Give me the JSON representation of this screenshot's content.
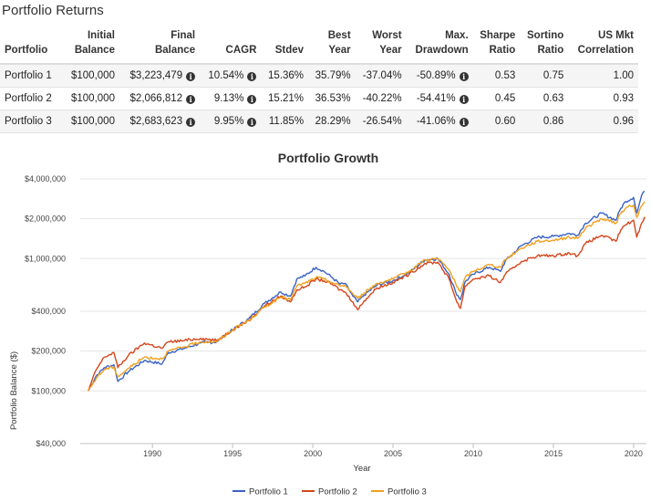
{
  "page": {
    "title": "Portfolio Returns"
  },
  "table": {
    "headers": [
      [
        "",
        "Portfolio"
      ],
      [
        "Initial",
        "Balance"
      ],
      [
        "Final",
        "Balance"
      ],
      [
        "",
        "CAGR"
      ],
      [
        "",
        "Stdev"
      ],
      [
        "Best",
        "Year"
      ],
      [
        "Worst",
        "Year"
      ],
      [
        "Max.",
        "Drawdown"
      ],
      [
        "Sharpe",
        "Ratio"
      ],
      [
        "Sortino",
        "Ratio"
      ],
      [
        "US Mkt",
        "Correlation"
      ]
    ],
    "rows": [
      {
        "portfolio": "Portfolio 1",
        "initial": "$100,000",
        "final": "$3,223,479",
        "cagr": "10.54%",
        "stdev": "15.36%",
        "best": "35.79%",
        "worst": "-37.04%",
        "maxdd": "-50.89%",
        "sharpe": "0.53",
        "sortino": "0.75",
        "corr": "1.00"
      },
      {
        "portfolio": "Portfolio 2",
        "initial": "$100,000",
        "final": "$2,066,812",
        "cagr": "9.13%",
        "stdev": "15.21%",
        "best": "36.53%",
        "worst": "-40.22%",
        "maxdd": "-54.41%",
        "sharpe": "0.45",
        "sortino": "0.63",
        "corr": "0.93"
      },
      {
        "portfolio": "Portfolio 3",
        "initial": "$100,000",
        "final": "$2,683,623",
        "cagr": "9.95%",
        "stdev": "11.85%",
        "best": "28.29%",
        "worst": "-26.54%",
        "maxdd": "-41.06%",
        "sharpe": "0.60",
        "sortino": "0.86",
        "corr": "0.96"
      }
    ],
    "info_icon": "info-circle-icon"
  },
  "chart_data": {
    "type": "line",
    "title": "Portfolio Growth",
    "xlabel": "Year",
    "ylabel": "Portfolio Balance ($)",
    "yscale": "log",
    "xlim": [
      1985.5,
      2020.8
    ],
    "ylim": [
      40000,
      4000000
    ],
    "xticks": [
      1990,
      1995,
      2000,
      2005,
      2010,
      2015,
      2020
    ],
    "xtick_labels": [
      "1990",
      "1995",
      "2000",
      "2005",
      "2010",
      "2015",
      "2020"
    ],
    "yticks": [
      40000,
      100000,
      200000,
      400000,
      1000000,
      2000000,
      4000000
    ],
    "ytick_labels": [
      "$40,000",
      "$100,000",
      "$200,000",
      "$400,000",
      "$1,000,000",
      "$2,000,000",
      "$4,000,000"
    ],
    "grid": true,
    "legend_position": "bottom-center",
    "series": [
      {
        "name": "Portfolio 1",
        "color": "#3a63c4",
        "x": [
          1986.0,
          1986.5,
          1987.0,
          1987.6,
          1987.85,
          1988.5,
          1989.5,
          1990.6,
          1991.0,
          1992.0,
          1993.0,
          1994.0,
          1995.0,
          1996.0,
          1997.0,
          1998.0,
          1998.6,
          1999.0,
          1999.5,
          2000.2,
          2000.7,
          2001.2,
          2001.7,
          2002.0,
          2002.5,
          2002.8,
          2003.2,
          2004.0,
          2005.0,
          2006.0,
          2007.0,
          2007.8,
          2008.5,
          2008.9,
          2009.2,
          2009.5,
          2010.0,
          2011.0,
          2011.7,
          2012.0,
          2013.0,
          2014.0,
          2015.0,
          2016.0,
          2016.5,
          2017.0,
          2018.0,
          2018.9,
          2019.2,
          2019.5,
          2020.0,
          2020.2,
          2020.5,
          2020.7
        ],
        "y": [
          100000,
          130000,
          150000,
          158000,
          118000,
          140000,
          170000,
          160000,
          195000,
          210000,
          230000,
          235000,
          290000,
          350000,
          460000,
          560000,
          520000,
          700000,
          740000,
          860000,
          800000,
          720000,
          640000,
          650000,
          520000,
          470000,
          530000,
          630000,
          680000,
          780000,
          980000,
          1000000,
          760000,
          560000,
          490000,
          670000,
          760000,
          860000,
          800000,
          960000,
          1250000,
          1450000,
          1470000,
          1550000,
          1500000,
          1850000,
          2200000,
          1950000,
          2400000,
          2700000,
          2900000,
          2200000,
          3000000,
          3223479
        ]
      },
      {
        "name": "Portfolio 2",
        "color": "#d4461c",
        "x": [
          1986.0,
          1986.5,
          1987.0,
          1987.6,
          1987.85,
          1988.5,
          1989.5,
          1990.6,
          1991.0,
          1992.0,
          1993.0,
          1994.0,
          1995.0,
          1996.0,
          1997.0,
          1998.0,
          1998.6,
          1999.0,
          1999.5,
          2000.2,
          2000.7,
          2001.2,
          2001.7,
          2002.0,
          2002.5,
          2002.8,
          2003.2,
          2004.0,
          2005.0,
          2006.0,
          2007.0,
          2007.8,
          2008.5,
          2008.9,
          2009.2,
          2009.5,
          2010.0,
          2011.0,
          2011.7,
          2012.0,
          2013.0,
          2014.0,
          2015.0,
          2016.0,
          2016.5,
          2017.0,
          2018.0,
          2018.9,
          2019.2,
          2019.5,
          2020.0,
          2020.2,
          2020.5,
          2020.7
        ],
        "y": [
          100000,
          145000,
          180000,
          195000,
          150000,
          185000,
          230000,
          210000,
          235000,
          240000,
          250000,
          240000,
          290000,
          340000,
          440000,
          520000,
          470000,
          580000,
          610000,
          700000,
          680000,
          640000,
          580000,
          560000,
          470000,
          410000,
          480000,
          600000,
          660000,
          760000,
          920000,
          940000,
          700000,
          500000,
          420000,
          620000,
          700000,
          740000,
          660000,
          760000,
          950000,
          1050000,
          1050000,
          1100000,
          1050000,
          1300000,
          1500000,
          1350000,
          1650000,
          1800000,
          1950000,
          1450000,
          1850000,
          2066812
        ]
      },
      {
        "name": "Portfolio 3",
        "color": "#f0a01e",
        "x": [
          1986.0,
          1986.5,
          1987.0,
          1987.6,
          1987.85,
          1988.5,
          1989.5,
          1990.6,
          1991.0,
          1992.0,
          1993.0,
          1994.0,
          1995.0,
          1996.0,
          1997.0,
          1998.0,
          1998.6,
          1999.0,
          1999.5,
          2000.2,
          2000.7,
          2001.2,
          2001.7,
          2002.0,
          2002.5,
          2002.8,
          2003.2,
          2004.0,
          2005.0,
          2006.0,
          2007.0,
          2007.8,
          2008.5,
          2008.9,
          2009.2,
          2009.5,
          2010.0,
          2011.0,
          2011.7,
          2012.0,
          2013.0,
          2014.0,
          2015.0,
          2016.0,
          2016.5,
          2017.0,
          2018.0,
          2018.9,
          2019.2,
          2019.5,
          2020.0,
          2020.2,
          2020.5,
          2020.7
        ],
        "y": [
          100000,
          125000,
          145000,
          152000,
          128000,
          148000,
          180000,
          175000,
          200000,
          215000,
          235000,
          235000,
          290000,
          340000,
          430000,
          510000,
          490000,
          620000,
          650000,
          720000,
          700000,
          660000,
          620000,
          630000,
          540000,
          500000,
          550000,
          650000,
          700000,
          800000,
          980000,
          1000000,
          820000,
          650000,
          560000,
          720000,
          800000,
          900000,
          860000,
          980000,
          1200000,
          1350000,
          1380000,
          1450000,
          1420000,
          1700000,
          2000000,
          1850000,
          2200000,
          2400000,
          2550000,
          2050000,
          2500000,
          2683623
        ]
      }
    ]
  }
}
